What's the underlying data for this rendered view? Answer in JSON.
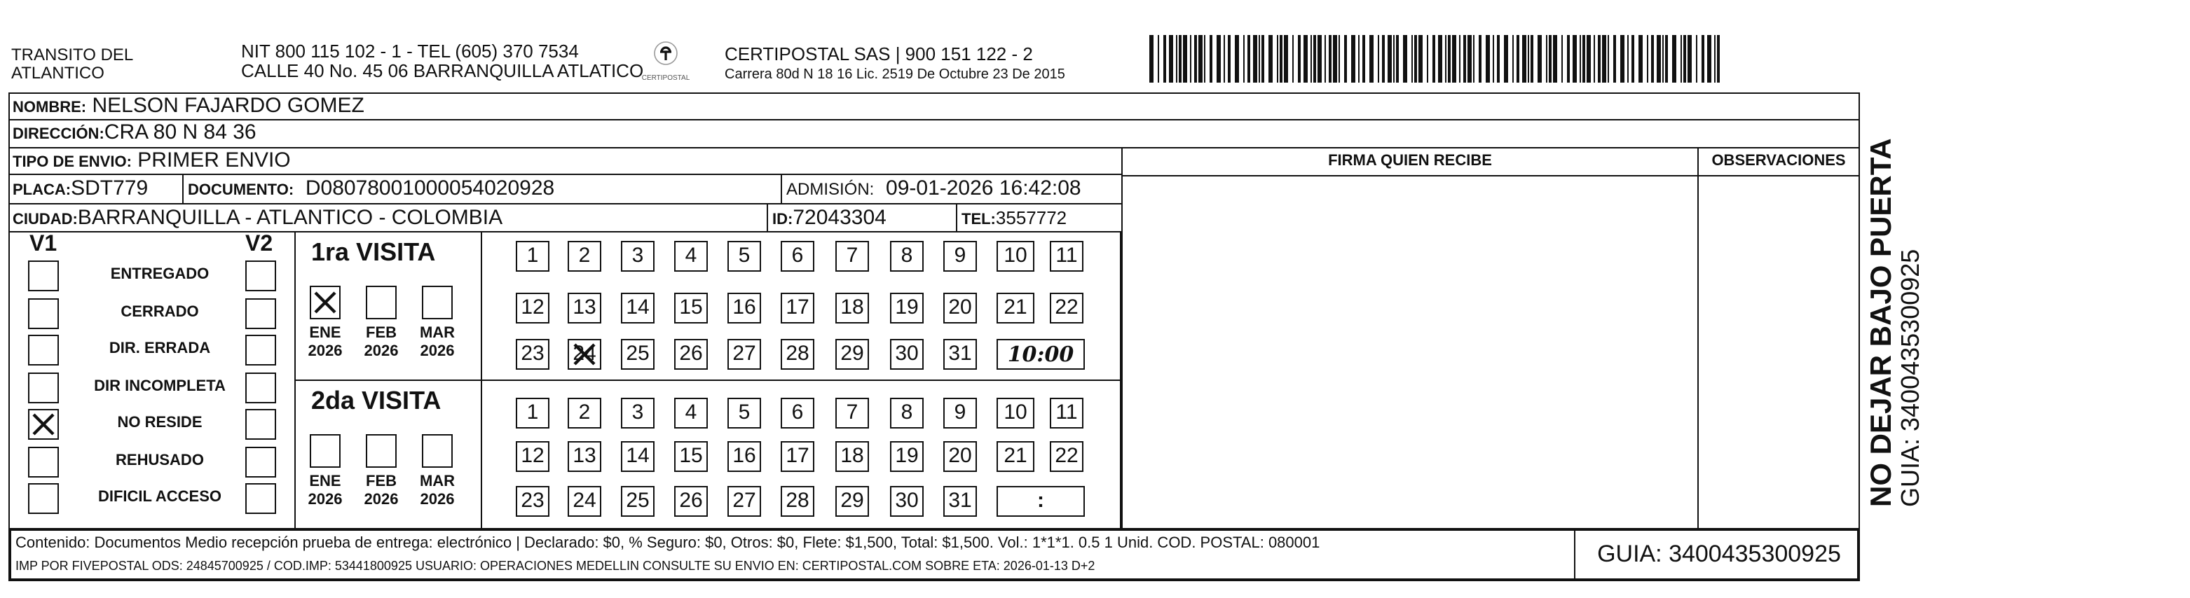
{
  "header": {
    "sender_line1": "TRANSITO DEL",
    "sender_line2": "ATLANTICO",
    "nit_line": "NIT 800 115 102 - 1 - TEL (605) 370 7534",
    "address_line": "CALLE 40 No. 45 06 BARRANQUILLA ATLATICO",
    "logo_text": "CERTIPOSTAL",
    "company_line": "CERTIPOSTAL SAS | 900 151 122 - 2",
    "license_line": "Carrera 80d N 18 16  Lic. 2519 De Octubre 23 De 2015",
    "barcode_icon": "barcode-icon"
  },
  "recipient": {
    "nombre_label": "NOMBRE:",
    "nombre": "NELSON FAJARDO GOMEZ",
    "direccion_label": "DIRECCIÓN:",
    "direccion": "CRA 80 N 84 36",
    "tipo_label": "TIPO DE ENVIO:",
    "tipo": "PRIMER ENVIO",
    "placa_label": "PLACA:",
    "placa": "SDT779",
    "documento_label": "DOCUMENTO:",
    "documento": "D08078001000054020928",
    "admision_label": "ADMISIÓN:",
    "admision": "09-01-2026 16:42:08",
    "ciudad_label": "CIUDAD:",
    "ciudad": "BARRANQUILLA - ATLANTICO - COLOMBIA",
    "id_label": "ID:",
    "id": "72043304",
    "tel_label": "TEL:",
    "tel": "3557772"
  },
  "columns": {
    "firma": "FIRMA QUIEN RECIBE",
    "observaciones": "OBSERVACIONES"
  },
  "status": {
    "v1": "V1",
    "v2": "V2",
    "options": [
      "ENTREGADO",
      "CERRADO",
      "DIR. ERRADA",
      "DIR INCOMPLETA",
      "NO RESIDE",
      "REHUSADO",
      "DIFICIL ACCESO"
    ],
    "v1_checked": "NO RESIDE"
  },
  "visits": [
    {
      "title": "1ra VISITA",
      "months": [
        {
          "m": "ENE",
          "y": "2026"
        },
        {
          "m": "FEB",
          "y": "2026"
        },
        {
          "m": "MAR",
          "y": "2026"
        }
      ],
      "month_checked": "ENE",
      "day_checked": "24",
      "time": "10:00"
    },
    {
      "title": "2da VISITA",
      "months": [
        {
          "m": "ENE",
          "y": "2026"
        },
        {
          "m": "FEB",
          "y": "2026"
        },
        {
          "m": "MAR",
          "y": "2026"
        }
      ],
      "time": ":"
    }
  ],
  "days": [
    "1",
    "2",
    "3",
    "4",
    "5",
    "6",
    "7",
    "8",
    "9",
    "10",
    "11",
    "12",
    "13",
    "14",
    "15",
    "16",
    "17",
    "18",
    "19",
    "20",
    "21",
    "22",
    "23",
    "24",
    "25",
    "26",
    "27",
    "28",
    "29",
    "30",
    "31"
  ],
  "footer": {
    "contenido": "Contenido: Documentos Medio recepción prueba de entrega: electrónico | Declarado: $0, % Seguro: $0, Otros: $0, Flete: $1,500, Total: $1,500. Vol.: 1*1*1. 0.5  1 Unid. COD. POSTAL: 080001",
    "imp": "IMP POR FIVEPOSTAL ODS: 24845700925 / COD.IMP: 53441800925 USUARIO: OPERACIONES MEDELLIN CONSULTE SU ENVIO EN: CERTIPOSTAL.COM SOBRE ETA: 2026-01-13 D+2",
    "guia": "GUIA: 3400435300925"
  },
  "side": {
    "warning": "NO DEJAR BAJO PUERTA",
    "guia": "GUIA: 3400435300925"
  }
}
